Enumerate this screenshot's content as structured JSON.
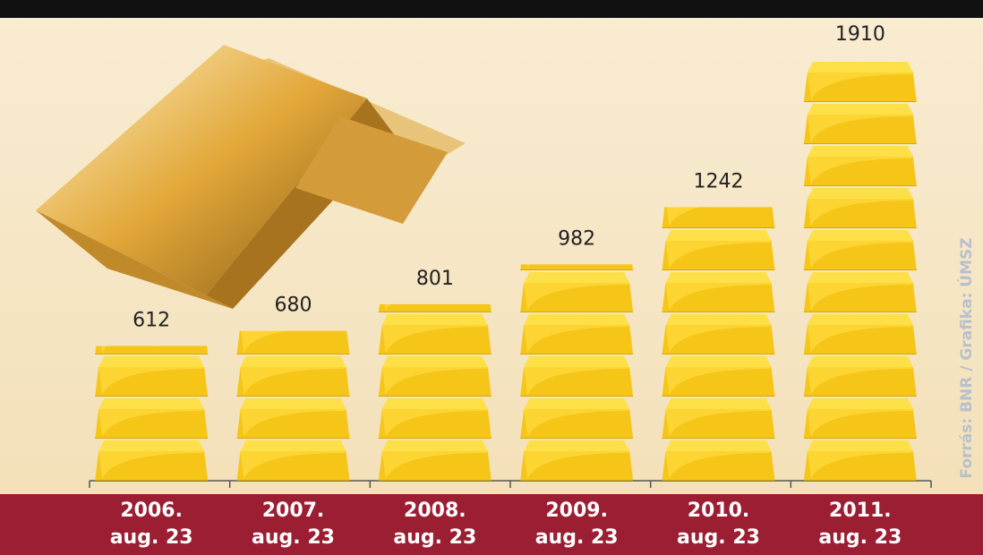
{
  "chart_data": {
    "type": "bar",
    "categories": [
      "2006.\naug. 23",
      "2007.\naug. 23",
      "2008.\naug. 23",
      "2009.\naug. 23",
      "2010.\naug. 23",
      "2011.\naug. 23"
    ],
    "values": [
      612,
      680,
      801,
      982,
      1242,
      1910
    ],
    "color": "#f5c518",
    "source": "Forrás: BNR / Grafika: ÚMSZ"
  }
}
